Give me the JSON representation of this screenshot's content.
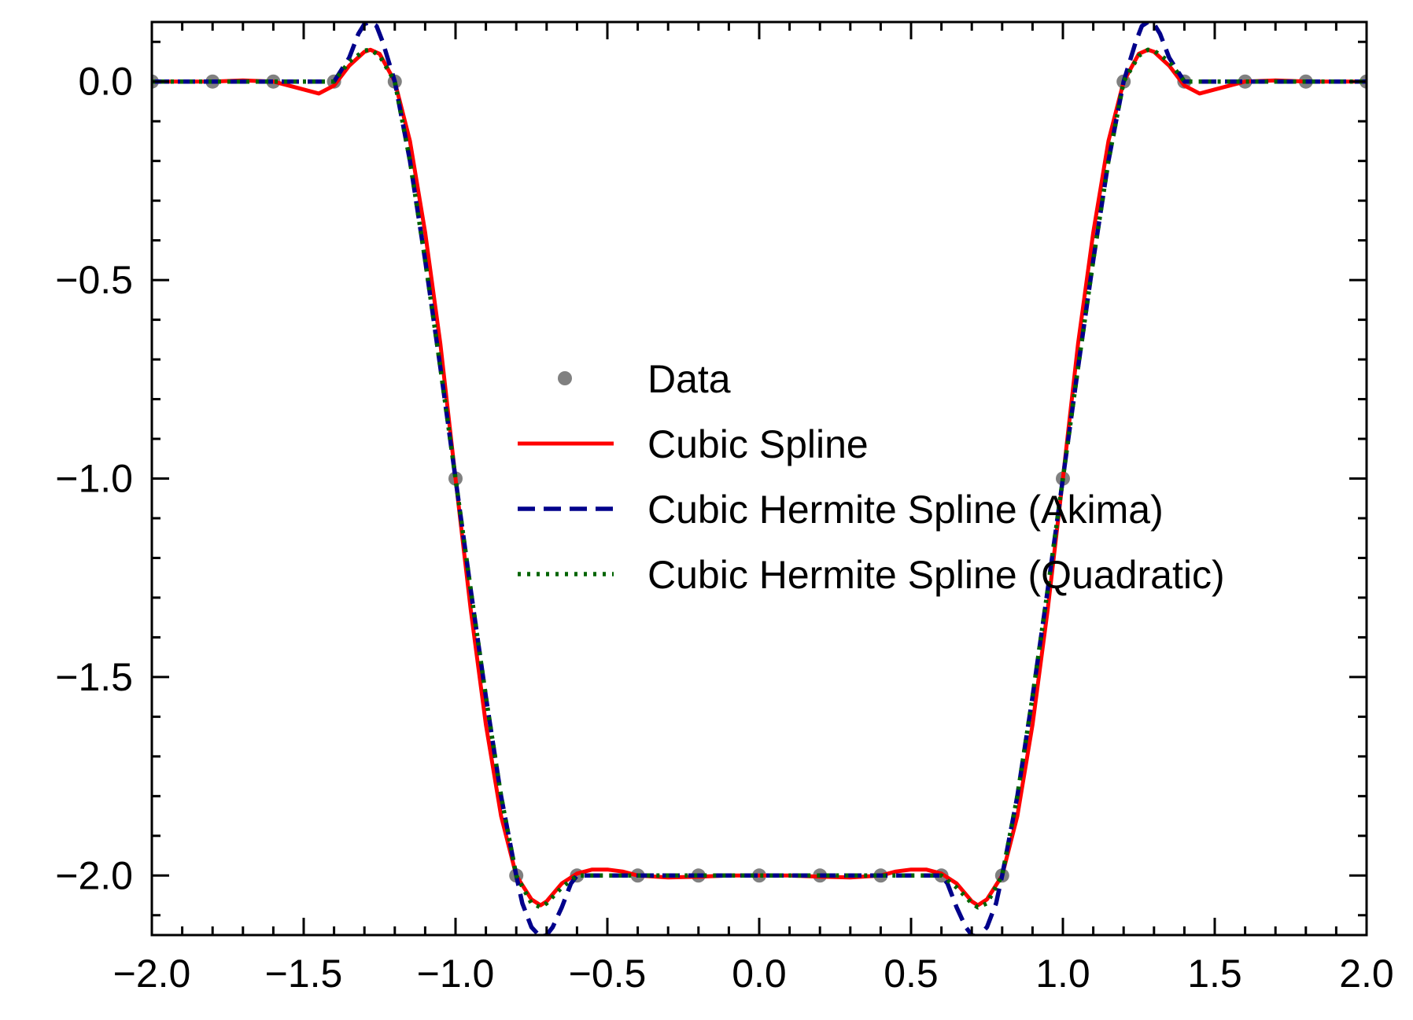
{
  "chart_data": {
    "type": "line",
    "title": "",
    "xlabel": "",
    "ylabel": "",
    "xlim": [
      -2.0,
      2.0
    ],
    "ylim": [
      -2.15,
      0.15
    ],
    "grid": false,
    "legend_placement": "center-right",
    "x_ticks": [
      {
        "value": -2.0,
        "label": "−2.0"
      },
      {
        "value": -1.5,
        "label": "−1.5"
      },
      {
        "value": -1.0,
        "label": "−1.0"
      },
      {
        "value": -0.5,
        "label": "−0.5"
      },
      {
        "value": 0.0,
        "label": "0.0"
      },
      {
        "value": 0.5,
        "label": "0.5"
      },
      {
        "value": 1.0,
        "label": "1.0"
      },
      {
        "value": 1.5,
        "label": "1.5"
      },
      {
        "value": 2.0,
        "label": "2.0"
      }
    ],
    "y_ticks": [
      {
        "value": 0.0,
        "label": "0.0"
      },
      {
        "value": -0.5,
        "label": "−0.5"
      },
      {
        "value": -1.0,
        "label": "−1.0"
      },
      {
        "value": -1.5,
        "label": "−1.5"
      },
      {
        "value": -2.0,
        "label": "−2.0"
      }
    ],
    "series": [
      {
        "name": "Data",
        "kind": "scatter",
        "color": "#808080",
        "x": [
          -2.0,
          -1.8,
          -1.6,
          -1.4,
          -1.2,
          -1.0,
          -0.8,
          -0.6,
          -0.4,
          -0.2,
          0.0,
          0.2,
          0.4,
          0.6,
          0.8,
          1.0,
          1.2,
          1.4,
          1.6,
          1.8,
          2.0
        ],
        "y": [
          0,
          0,
          0,
          0,
          0,
          -1,
          -2,
          -2,
          -2,
          -2,
          -2,
          -2,
          -2,
          -2,
          -2,
          -1,
          0,
          0,
          0,
          0,
          0
        ]
      },
      {
        "name": "Cubic Spline",
        "kind": "line",
        "style": "solid",
        "color": "#ff0000",
        "x": [
          -2.0,
          -1.9,
          -1.8,
          -1.7,
          -1.6,
          -1.5,
          -1.45,
          -1.4,
          -1.35,
          -1.3,
          -1.28,
          -1.25,
          -1.2,
          -1.15,
          -1.1,
          -1.05,
          -1.0,
          -0.95,
          -0.9,
          -0.85,
          -0.8,
          -0.75,
          -0.72,
          -0.7,
          -0.65,
          -0.6,
          -0.55,
          -0.5,
          -0.45,
          -0.4,
          -0.3,
          -0.2,
          -0.1,
          0.0,
          0.1,
          0.2,
          0.3,
          0.4,
          0.45,
          0.5,
          0.55,
          0.6,
          0.65,
          0.7,
          0.72,
          0.75,
          0.8,
          0.85,
          0.9,
          0.95,
          1.0,
          1.05,
          1.1,
          1.15,
          1.2,
          1.25,
          1.28,
          1.3,
          1.35,
          1.4,
          1.45,
          1.5,
          1.6,
          1.7,
          1.8,
          1.9,
          2.0
        ],
        "y": [
          0,
          0,
          0,
          0.003,
          0,
          -0.02,
          -0.03,
          -0.01,
          0.04,
          0.075,
          0.08,
          0.07,
          0.0,
          -0.15,
          -0.38,
          -0.66,
          -1.0,
          -1.33,
          -1.62,
          -1.85,
          -2.0,
          -2.06,
          -2.075,
          -2.065,
          -2.02,
          -1.995,
          -1.985,
          -1.985,
          -1.99,
          -2.0,
          -2.005,
          -2.003,
          -2.0,
          -2.0,
          -2.0,
          -2.003,
          -2.005,
          -2.0,
          -1.99,
          -1.985,
          -1.985,
          -1.995,
          -2.02,
          -2.065,
          -2.075,
          -2.06,
          -2.0,
          -1.85,
          -1.62,
          -1.33,
          -1.0,
          -0.66,
          -0.38,
          -0.15,
          0.0,
          0.07,
          0.08,
          0.075,
          0.04,
          -0.01,
          -0.03,
          -0.02,
          0,
          0.003,
          0,
          0,
          0
        ]
      },
      {
        "name": "Cubic Hermite Spline (Akima)",
        "kind": "line",
        "style": "dashed",
        "color": "#00008b",
        "x": [
          -2.0,
          -1.6,
          -1.4,
          -1.35,
          -1.32,
          -1.3,
          -1.28,
          -1.26,
          -1.24,
          -1.2,
          -1.15,
          -1.1,
          -1.05,
          -1.0,
          -0.95,
          -0.9,
          -0.85,
          -0.8,
          -0.78,
          -0.75,
          -0.72,
          -0.7,
          -0.68,
          -0.65,
          -0.62,
          -0.6,
          0.6,
          0.62,
          0.65,
          0.68,
          0.7,
          0.72,
          0.75,
          0.78,
          0.8,
          0.85,
          0.9,
          0.95,
          1.0,
          1.05,
          1.1,
          1.15,
          1.2,
          1.24,
          1.26,
          1.28,
          1.3,
          1.32,
          1.35,
          1.4,
          1.6,
          2.0
        ],
        "y": [
          0,
          0,
          0,
          0.06,
          0.12,
          0.145,
          0.15,
          0.14,
          0.1,
          0.0,
          -0.2,
          -0.45,
          -0.72,
          -1.0,
          -1.28,
          -1.55,
          -1.8,
          -2.0,
          -2.07,
          -2.13,
          -2.155,
          -2.15,
          -2.13,
          -2.08,
          -2.02,
          -2.0,
          -2.0,
          -2.02,
          -2.08,
          -2.13,
          -2.15,
          -2.155,
          -2.13,
          -2.07,
          -2.0,
          -1.8,
          -1.55,
          -1.28,
          -1.0,
          -0.72,
          -0.45,
          -0.2,
          0.0,
          0.1,
          0.14,
          0.15,
          0.145,
          0.12,
          0.06,
          0,
          0,
          0
        ]
      },
      {
        "name": "Cubic Hermite Spline (Quadratic)",
        "kind": "line",
        "style": "dotted",
        "color": "#006400",
        "x": [
          -2.0,
          -1.6,
          -1.4,
          -1.35,
          -1.3,
          -1.28,
          -1.25,
          -1.2,
          -1.15,
          -1.1,
          -1.05,
          -1.0,
          -0.95,
          -0.9,
          -0.85,
          -0.8,
          -0.75,
          -0.72,
          -0.7,
          -0.65,
          -0.6,
          0.6,
          0.65,
          0.7,
          0.72,
          0.75,
          0.8,
          0.85,
          0.9,
          0.95,
          1.0,
          1.05,
          1.1,
          1.15,
          1.2,
          1.25,
          1.28,
          1.3,
          1.35,
          1.4,
          1.6,
          2.0
        ],
        "y": [
          0,
          0,
          0,
          0.05,
          0.078,
          0.08,
          0.065,
          0.0,
          -0.2,
          -0.45,
          -0.72,
          -1.0,
          -1.28,
          -1.55,
          -1.8,
          -2.0,
          -2.07,
          -2.08,
          -2.07,
          -2.03,
          -2.0,
          -2.0,
          -2.03,
          -2.07,
          -2.08,
          -2.07,
          -2.0,
          -1.8,
          -1.55,
          -1.28,
          -1.0,
          -0.72,
          -0.45,
          -0.2,
          0.0,
          0.065,
          0.08,
          0.078,
          0.05,
          0,
          0,
          0
        ]
      }
    ]
  }
}
